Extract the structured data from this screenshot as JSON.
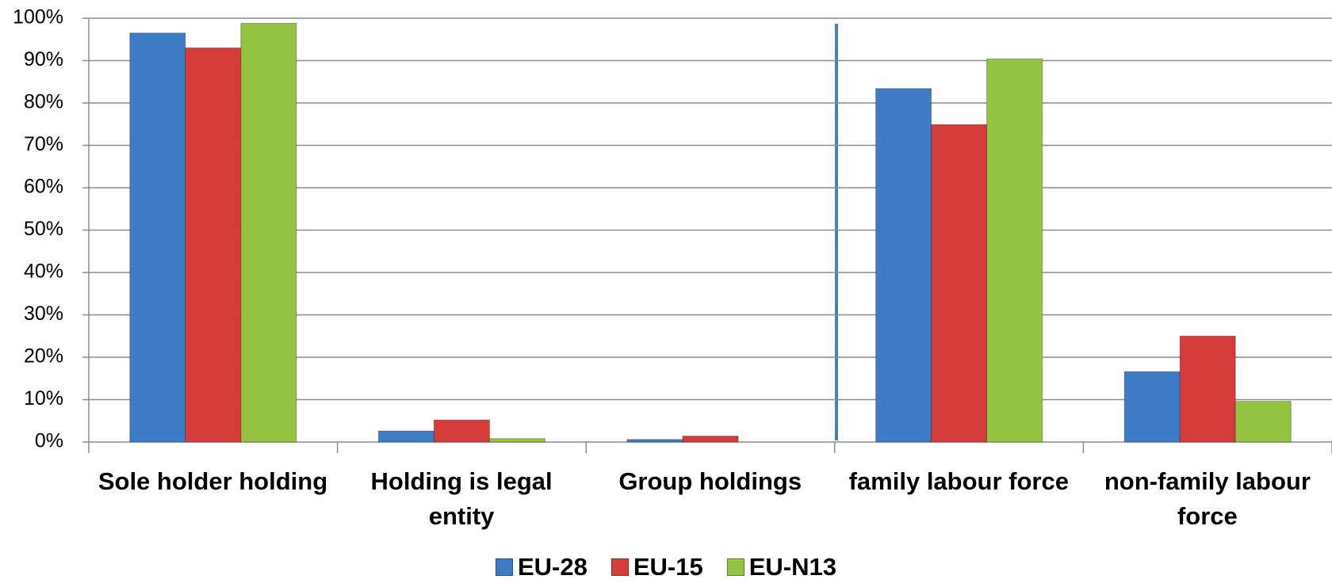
{
  "chart_data": {
    "type": "bar",
    "categories": [
      "Sole holder holding",
      "Holding is legal entity",
      "Group holdings",
      "family labour force",
      "non-family labour force"
    ],
    "series": [
      {
        "name": "EU-28",
        "color": "#3f7cc8",
        "values": [
          96.5,
          2.6,
          0.6,
          83.4,
          16.6
        ]
      },
      {
        "name": "EU-15",
        "color": "#d63c3c",
        "values": [
          93,
          5.2,
          1.4,
          74.9,
          25
        ]
      },
      {
        "name": "EU-N13",
        "color": "#94c441",
        "values": [
          98.8,
          0.8,
          0,
          90.4,
          9.6
        ]
      }
    ],
    "ylim": [
      0,
      100
    ],
    "yticks": [
      {
        "value": 0,
        "label": "0%"
      },
      {
        "value": 10,
        "label": "10%"
      },
      {
        "value": 20,
        "label": "20%"
      },
      {
        "value": 30,
        "label": "30%"
      },
      {
        "value": 40,
        "label": "40%"
      },
      {
        "value": 50,
        "label": "50%"
      },
      {
        "value": 60,
        "label": "60%"
      },
      {
        "value": 70,
        "label": "70%"
      },
      {
        "value": 80,
        "label": "80%"
      },
      {
        "value": 90,
        "label": "90%"
      },
      {
        "value": 100,
        "label": "100%"
      }
    ],
    "grid": true
  }
}
